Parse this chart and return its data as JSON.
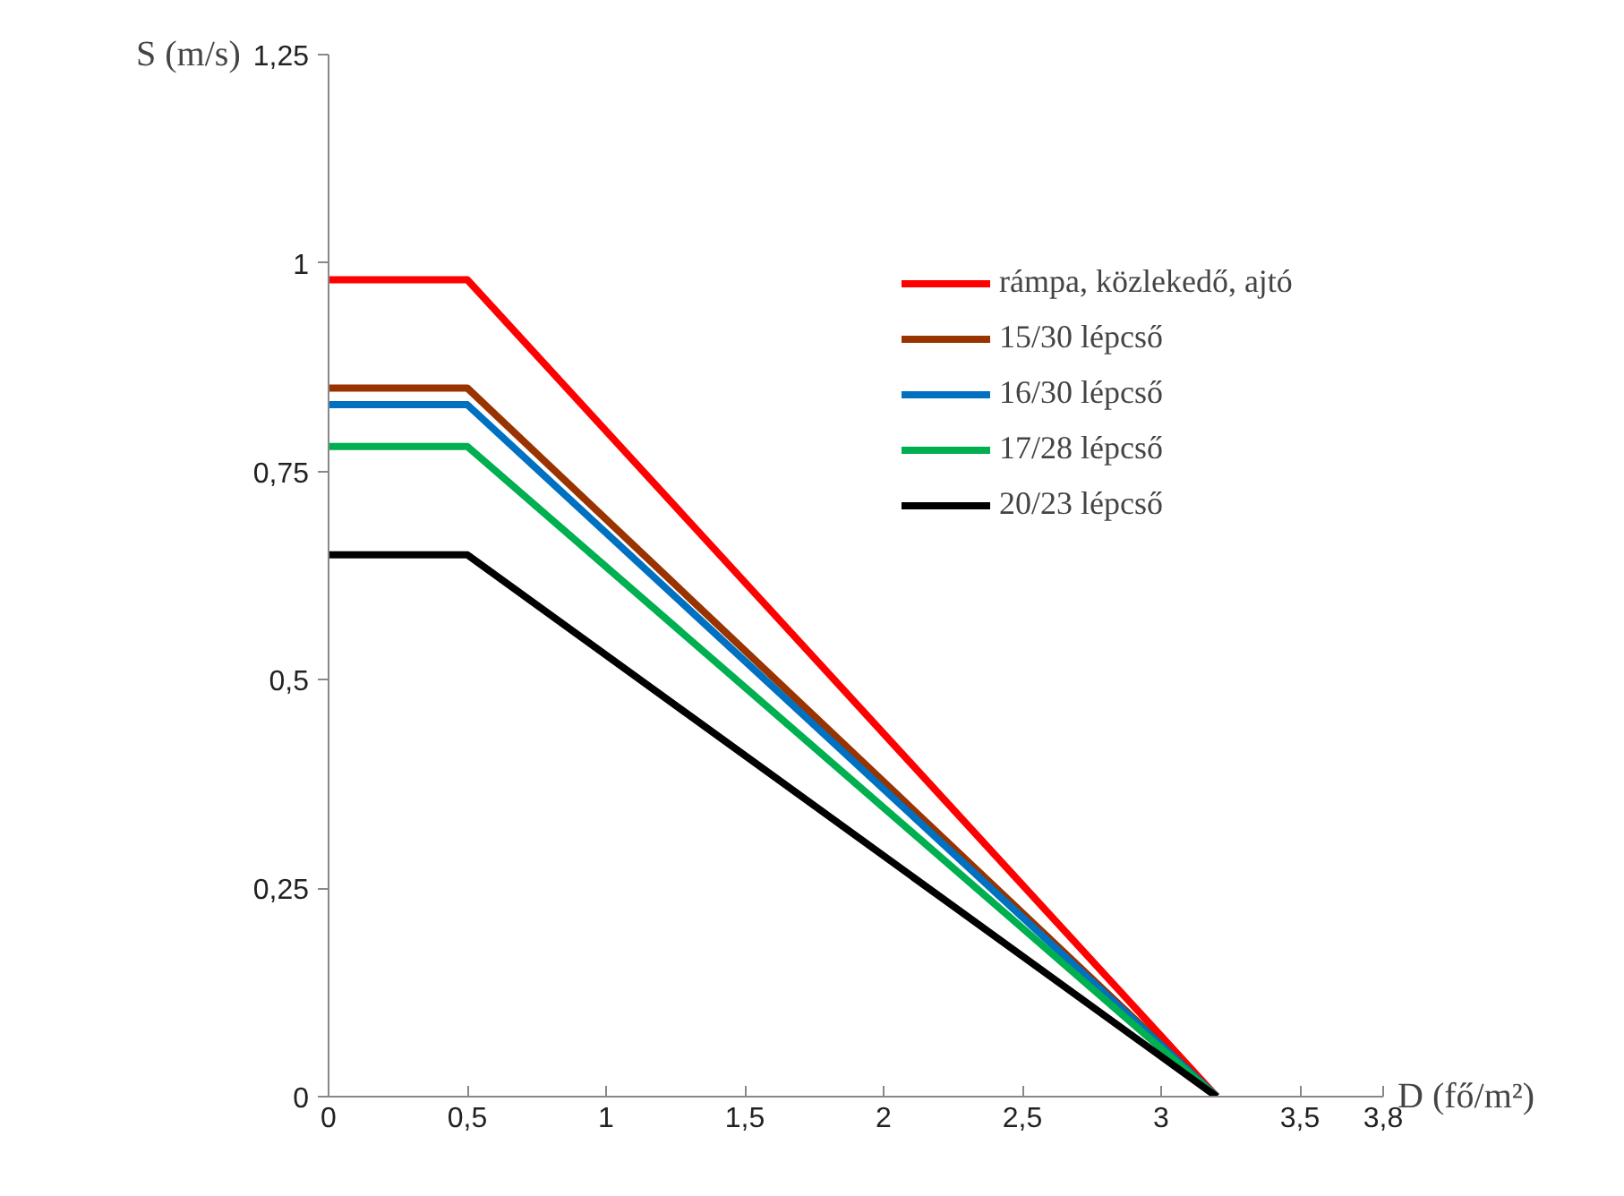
{
  "chart_data": {
    "type": "line",
    "xlabel": "D (fő/m²)",
    "ylabel": "S (m/s)",
    "x": [
      0,
      0.5,
      3.2
    ],
    "series": [
      {
        "name": "rámpa, közlekedő, ajtó",
        "color": "#ff0000",
        "values": [
          0.98,
          0.98,
          0
        ]
      },
      {
        "name": "15/30 lépcső",
        "color": "#993300",
        "values": [
          0.85,
          0.85,
          0
        ]
      },
      {
        "name": "16/30 lépcső",
        "color": "#0070c0",
        "values": [
          0.83,
          0.83,
          0
        ]
      },
      {
        "name": "17/28 lépcső",
        "color": "#00b050",
        "values": [
          0.78,
          0.78,
          0
        ]
      },
      {
        "name": "20/23 lépcső",
        "color": "#000000",
        "values": [
          0.65,
          0.65,
          0
        ]
      }
    ],
    "xlim": [
      0,
      3.8
    ],
    "xticks": [
      0,
      {
        "value": 0.5,
        "label": "0,5"
      },
      1,
      {
        "value": 1.5,
        "label": "1,5"
      },
      2,
      {
        "value": 2.5,
        "label": "2,5"
      },
      3,
      {
        "value": 3.5,
        "label": "3,5"
      },
      {
        "value": 3.8,
        "label": "3,8"
      }
    ],
    "ylim": [
      0,
      1.25
    ],
    "yticks": [
      0,
      {
        "value": 0.25,
        "label": "0,25"
      },
      {
        "value": 0.5,
        "label": "0,5"
      },
      {
        "value": 0.75,
        "label": "0,75"
      },
      1,
      {
        "value": 1.25,
        "label": "1,25"
      }
    ],
    "grid": false,
    "legend": "top right",
    "marker": "none",
    "line_style": "solid"
  }
}
